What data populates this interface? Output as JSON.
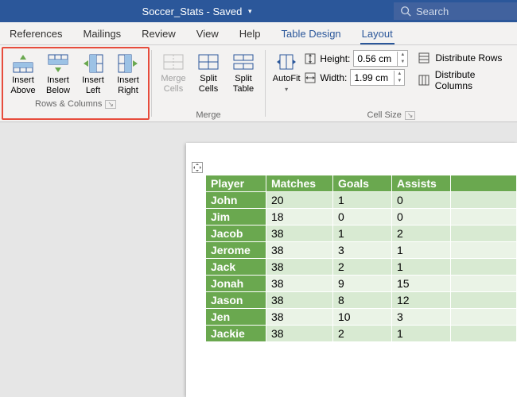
{
  "title": {
    "filename": "Soccer_Stats",
    "status": "Saved"
  },
  "search": {
    "placeholder": "Search"
  },
  "tabs": [
    "References",
    "Mailings",
    "Review",
    "View",
    "Help",
    "Table Design",
    "Layout"
  ],
  "active_tab": "Layout",
  "ribbon": {
    "rows_cols": {
      "label": "Rows & Columns",
      "buttons": {
        "insert_above": "Insert\nAbove",
        "insert_below": "Insert\nBelow",
        "insert_left": "Insert\nLeft",
        "insert_right": "Insert\nRight"
      }
    },
    "merge": {
      "label": "Merge",
      "buttons": {
        "merge_cells": "Merge\nCells",
        "split_cells": "Split\nCells",
        "split_table": "Split\nTable"
      }
    },
    "autofit": {
      "label": "AutoFit"
    },
    "cell_size": {
      "label": "Cell Size",
      "height_label": "Height:",
      "height_value": "0.56 cm",
      "width_label": "Width:",
      "width_value": "1.99 cm",
      "dist_rows": "Distribute Rows",
      "dist_cols": "Distribute Columns"
    }
  },
  "table": {
    "columns": [
      "Player",
      "Matches",
      "Goals",
      "Assists"
    ],
    "col_widths": [
      "76px",
      "84px",
      "74px",
      "74px"
    ],
    "header_bg": "#6aa84f",
    "header_fg": "#ffffff",
    "player_bg": "#6aa84f",
    "band_a_bg": "#d8ead2",
    "band_b_bg": "#eaf3e6",
    "rows": [
      [
        "John",
        "20",
        "1",
        "0"
      ],
      [
        "Jim",
        "18",
        "0",
        "0"
      ],
      [
        "Jacob",
        "38",
        "1",
        "2"
      ],
      [
        "Jerome",
        "38",
        "3",
        "1"
      ],
      [
        "Jack",
        "38",
        "2",
        "1"
      ],
      [
        "Jonah",
        "38",
        "9",
        "15"
      ],
      [
        "Jason",
        "38",
        "8",
        "12"
      ],
      [
        "Jen",
        "38",
        "10",
        "3"
      ],
      [
        "Jackie",
        "38",
        "2",
        "1"
      ]
    ]
  },
  "colors": {
    "title_bar": "#2b579a",
    "ribbon_bg": "#f3f2f1",
    "highlight": "#e74c3c",
    "accent": "#2b579a"
  }
}
